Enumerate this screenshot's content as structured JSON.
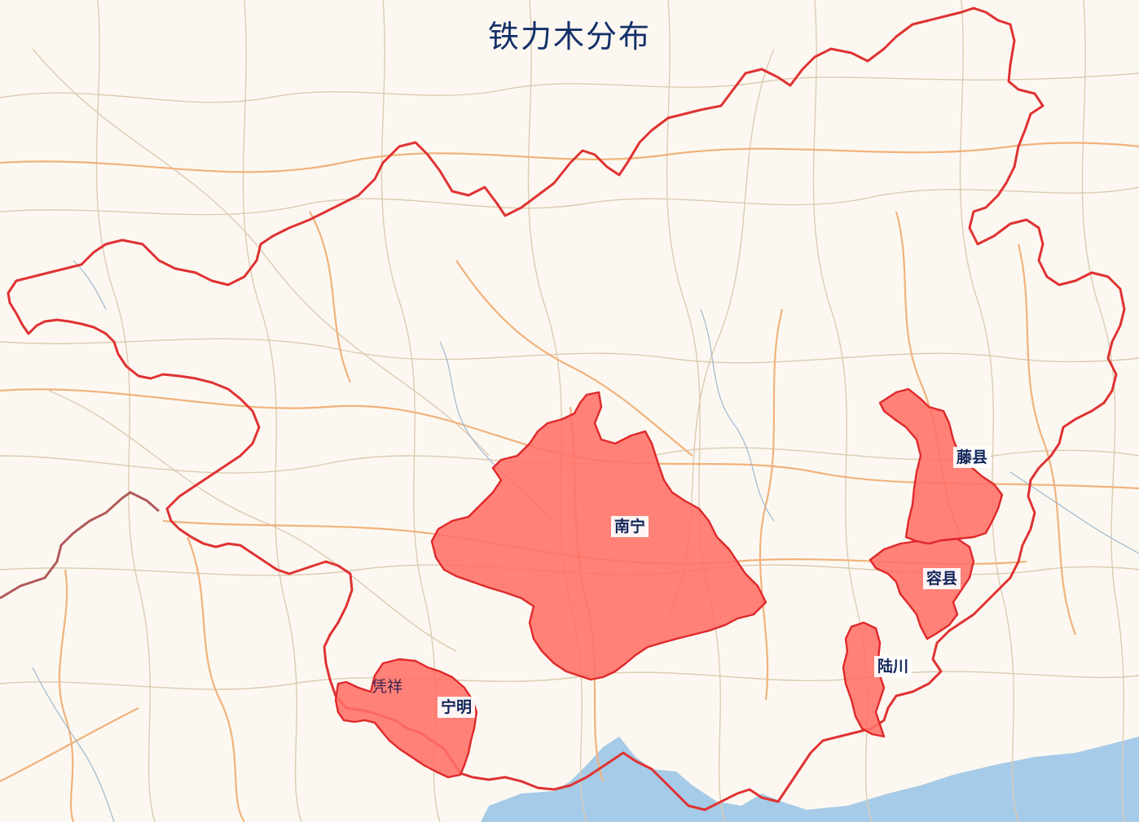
{
  "title": "铁力木分布",
  "colors": {
    "land": "#fcf8f1",
    "sea": "#a6cbe8",
    "border_province": "#e03232",
    "border_country": "#b05050",
    "road_major": "#f0b98a",
    "road_minor": "#d9c7b0",
    "highlight_fill": "#ff6f66",
    "highlight_stroke": "#e0282a",
    "label_text": "#10255a"
  },
  "regions": [
    {
      "id": "nanning",
      "name": "南宁"
    },
    {
      "id": "tengxian",
      "name": "藤县"
    },
    {
      "id": "rongxian",
      "name": "容县"
    },
    {
      "id": "luchuan",
      "name": "陆川"
    },
    {
      "id": "pingxiang",
      "name": "凭祥"
    },
    {
      "id": "ningming",
      "name": "宁明"
    }
  ]
}
